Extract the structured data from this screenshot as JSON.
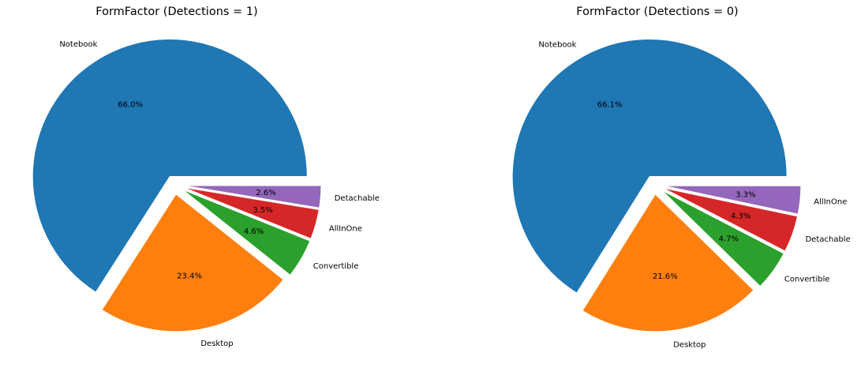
{
  "chart_data": [
    {
      "type": "pie",
      "title": "FormFactor (Detections = 1)",
      "slices": [
        {
          "label": "Notebook",
          "value": 66.0,
          "pct_label": "66.0%",
          "color": "#1f77b4"
        },
        {
          "label": "Desktop",
          "value": 23.4,
          "pct_label": "23.4%",
          "color": "#ff7f0e"
        },
        {
          "label": "Convertible",
          "value": 4.6,
          "pct_label": "4.6%",
          "color": "#2ca02c"
        },
        {
          "label": "AllInOne",
          "value": 3.5,
          "pct_label": "3.5%",
          "color": "#d62728"
        },
        {
          "label": "Detachable",
          "value": 2.6,
          "pct_label": "2.6%",
          "color": "#9467bd"
        }
      ]
    },
    {
      "type": "pie",
      "title": "FormFactor (Detections = 0)",
      "slices": [
        {
          "label": "Notebook",
          "value": 66.1,
          "pct_label": "66.1%",
          "color": "#1f77b4"
        },
        {
          "label": "Desktop",
          "value": 21.6,
          "pct_label": "21.6%",
          "color": "#ff7f0e"
        },
        {
          "label": "Convertible",
          "value": 4.7,
          "pct_label": "4.7%",
          "color": "#2ca02c"
        },
        {
          "label": "Detachable",
          "value": 4.3,
          "pct_label": "4.3%",
          "color": "#d62728"
        },
        {
          "label": "AllInOne",
          "value": 3.3,
          "pct_label": "3.3%",
          "color": "#9467bd"
        }
      ]
    }
  ]
}
